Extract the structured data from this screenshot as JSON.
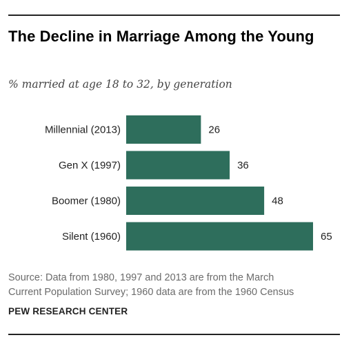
{
  "header": {
    "title": "The Decline in Marriage Among the Young",
    "subtitle": "% married at age 18 to 32, by generation"
  },
  "chart_data": {
    "type": "bar",
    "orientation": "horizontal",
    "title": "The Decline in Marriage Among the Young",
    "subtitle": "% married at age 18 to 32, by generation",
    "categories": [
      "Millennial (2013)",
      "Gen X (1997)",
      "Boomer (1980)",
      "Silent (1960)"
    ],
    "values": [
      26,
      36,
      48,
      65
    ],
    "xlabel": "",
    "ylabel": "",
    "xlim": [
      0,
      65
    ],
    "grid": false,
    "legend": "none",
    "bar_color": "#2e6e5c"
  },
  "footer": {
    "source_line1": "Source: Data from 1980, 1997 and 2013 are from the March",
    "source_line2": "Current Population Survey; 1960 data are from the 1960 Census",
    "brand": "PEW RESEARCH CENTER"
  }
}
